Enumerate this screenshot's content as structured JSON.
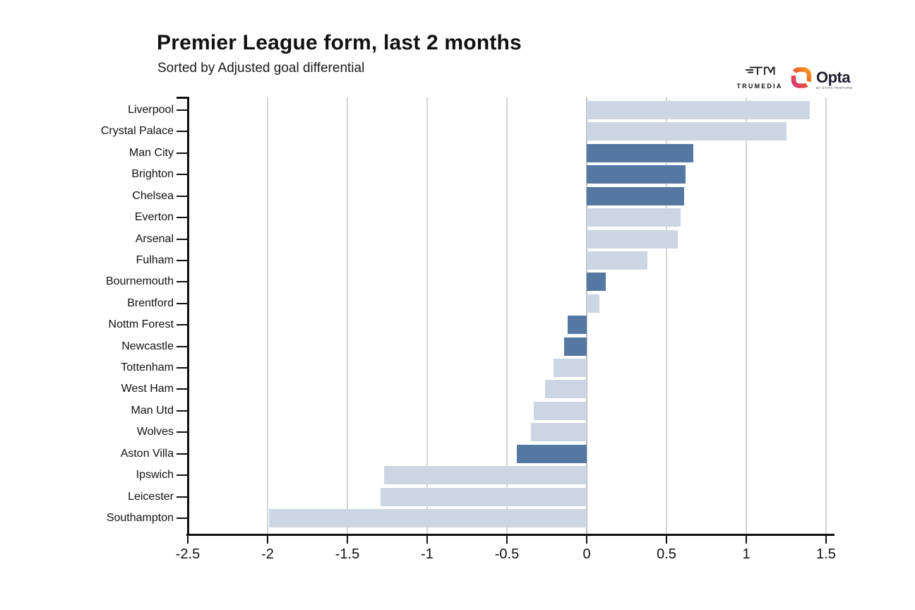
{
  "header": {
    "title": "Premier League form, last 2 months",
    "subtitle": "Sorted by Adjusted goal differential"
  },
  "branding": {
    "trumedia_name": "TRUMEDIA",
    "opta_name": "Opta",
    "opta_sub": "BY STATS PERFORM"
  },
  "chart_data": {
    "type": "bar",
    "orientation": "horizontal",
    "title": "Premier League form, last 2 months",
    "subtitle": "Sorted by Adjusted goal differential",
    "categories": [
      "Liverpool",
      "Crystal Palace",
      "Man City",
      "Brighton",
      "Chelsea",
      "Everton",
      "Arsenal",
      "Fulham",
      "Bournemouth",
      "Brentford",
      "Nottm Forest",
      "Newcastle",
      "Tottenham",
      "West Ham",
      "Man Utd",
      "Wolves",
      "Aston Villa",
      "Ipswich",
      "Leicester",
      "Southampton"
    ],
    "values": [
      1.4,
      1.25,
      0.67,
      0.62,
      0.61,
      0.59,
      0.57,
      0.38,
      0.12,
      0.08,
      -0.12,
      -0.14,
      -0.21,
      -0.26,
      -0.33,
      -0.35,
      -0.44,
      -1.27,
      -1.29,
      -1.99
    ],
    "emphasized": [
      false,
      false,
      true,
      true,
      true,
      false,
      false,
      false,
      true,
      false,
      true,
      true,
      false,
      false,
      false,
      false,
      true,
      false,
      false,
      false
    ],
    "xlim": [
      -2.5,
      1.5
    ],
    "x_ticks": [
      -2.5,
      -2,
      -1.5,
      -1,
      -0.5,
      0,
      0.5,
      1,
      1.5
    ],
    "x_tick_labels": [
      "-2.5",
      "-2",
      "-1.5",
      "-1",
      "-0.5",
      "0",
      "0.5",
      "1",
      "1.5"
    ],
    "grid": "vertical",
    "legend": "none",
    "colors": {
      "bar_light": "#ccd6e3",
      "bar_dark": "#5578a2",
      "grid": "#d4d4d4",
      "zero_line": "#bdbdbd",
      "axis": "#111111",
      "opta_gradient_start": "#f59a23",
      "opta_gradient_end": "#d63384"
    }
  }
}
